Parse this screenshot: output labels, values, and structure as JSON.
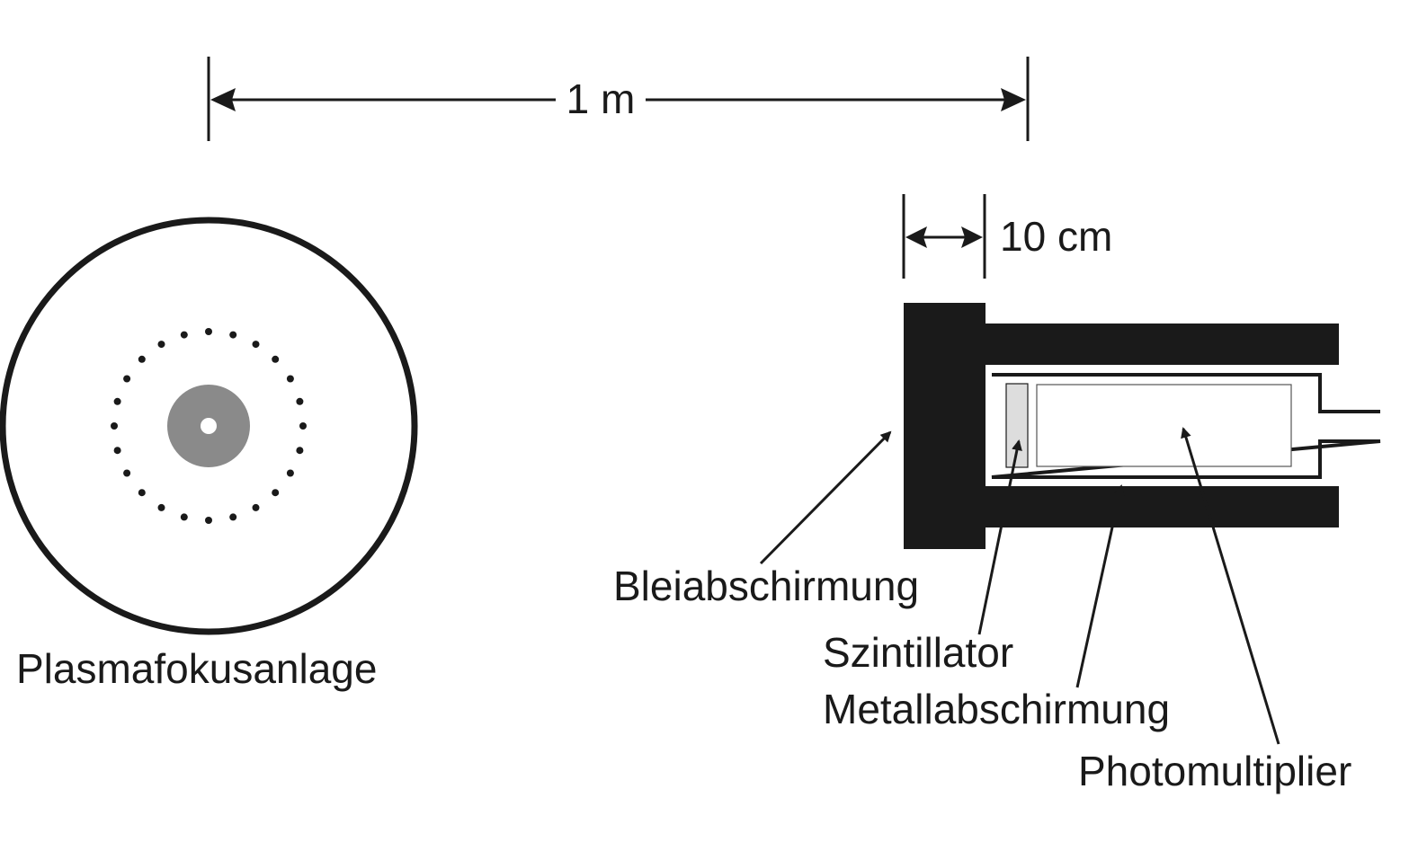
{
  "dimensions": {
    "total_distance": "1 m",
    "shield_thickness": "10 cm"
  },
  "labels": {
    "plasma_focus": "Plasmafokusanlage",
    "lead_shield": "Bleiabschirmung",
    "scintillator": "Szintillator",
    "metal_shield": "Metallabschirmung",
    "photomultiplier": "Photomultiplier"
  },
  "colors": {
    "ink": "#1a1a1a",
    "plasma_core": "#8a8a8a",
    "scintillator_fill": "#dddddd",
    "background": "#ffffff"
  }
}
